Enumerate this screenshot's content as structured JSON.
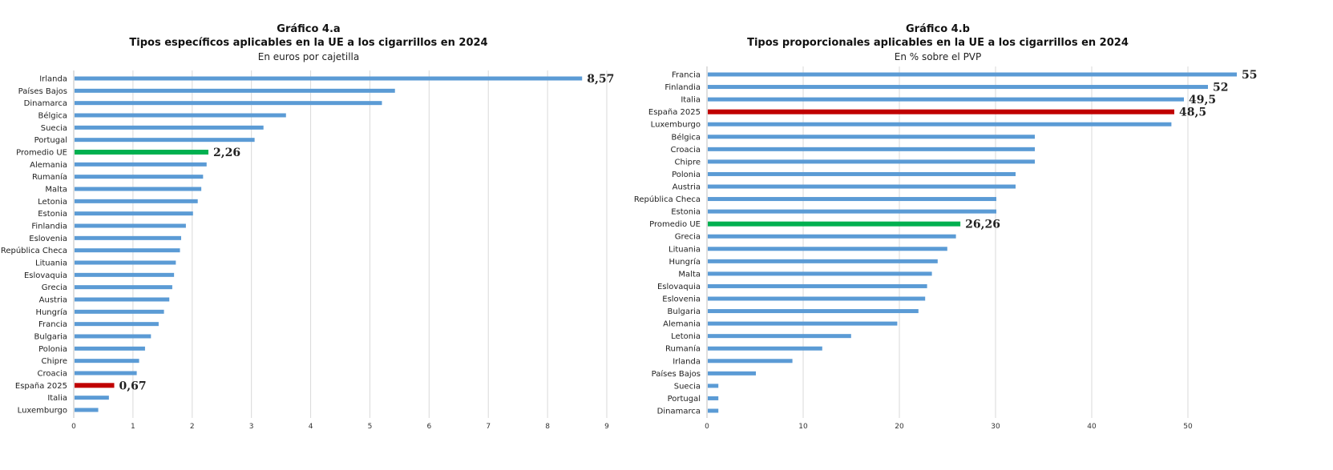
{
  "colors": {
    "bar": "#5b9bd5",
    "average": "#00b050",
    "spain": "#c00000",
    "grid": "#d9d9d9"
  },
  "chart_data": [
    {
      "type": "bar",
      "orientation": "horizontal",
      "title": "Gráfico 4.a",
      "subtitle": "Tipos específicos aplicables en la UE a los cigarrillos en 2024",
      "unit_label": "En euros por cajetilla",
      "xlim": [
        0,
        9
      ],
      "xticks": [
        "0",
        "1",
        "2",
        "3",
        "4",
        "5",
        "6",
        "7",
        "8",
        "9"
      ],
      "grid": true,
      "categories": [
        "Irlanda",
        "Países Bajos",
        "Dinamarca",
        "Bélgica",
        "Suecia",
        "Portugal",
        "Promedio UE",
        "Alemania",
        "Rumanía",
        "Malta",
        "Letonia",
        "Estonia",
        "Finlandia",
        "Eslovenia",
        "República Checa",
        "Lituania",
        "Eslovaquia",
        "Grecia",
        "Austria",
        "Hungría",
        "Francia",
        "Bulgaria",
        "Polonia",
        "Chipre",
        "Croacia",
        "España 2025",
        "Italia",
        "Luxemburgo"
      ],
      "values": [
        8.57,
        5.41,
        5.19,
        3.57,
        3.19,
        3.04,
        2.26,
        2.23,
        2.17,
        2.14,
        2.08,
        2.0,
        1.88,
        1.8,
        1.78,
        1.71,
        1.68,
        1.65,
        1.6,
        1.51,
        1.42,
        1.29,
        1.19,
        1.09,
        1.05,
        0.67,
        0.58,
        0.4
      ],
      "highlights": {
        "Promedio UE": "average",
        "España 2025": "spain"
      },
      "data_labels": {
        "Irlanda": "8,57",
        "Promedio UE": "2,26",
        "España 2025": "0,67"
      }
    },
    {
      "type": "bar",
      "orientation": "horizontal",
      "title": "Gráfico 4.b",
      "subtitle": "Tipos proporcionales aplicables en la UE a los cigarrillos en 2024",
      "unit_label": "En % sobre el PVP",
      "xlim": [
        0,
        55
      ],
      "xticks": [
        "0",
        "10",
        "20",
        "30",
        "40",
        "50"
      ],
      "grid": true,
      "categories": [
        "Francia",
        "Finlandia",
        "Italia",
        "España 2025",
        "Luxemburgo",
        "Bélgica",
        "Croacia",
        "Chipre",
        "Polonia",
        "Austria",
        "República Checa",
        "Estonia",
        "Promedio UE",
        "Grecia",
        "Lituania",
        "Hungría",
        "Malta",
        "Eslovaquia",
        "Eslovenia",
        "Bulgaria",
        "Alemania",
        "Letonia",
        "Rumanía",
        "Irlanda",
        "Países Bajos",
        "Suecia",
        "Portugal",
        "Dinamarca"
      ],
      "values": [
        55,
        52,
        49.5,
        48.5,
        48.2,
        34,
        34,
        34,
        32,
        32,
        30,
        30,
        26.26,
        25.8,
        24.9,
        23.9,
        23.3,
        22.8,
        22.6,
        21.9,
        19.7,
        14.9,
        11.9,
        8.8,
        5.0,
        1.1,
        1.1,
        1.1
      ],
      "highlights": {
        "Promedio UE": "average",
        "España 2025": "spain"
      },
      "data_labels": {
        "Francia": "55",
        "Finlandia": "52",
        "Italia": "49,5",
        "España 2025": "48,5",
        "Promedio UE": "26,26"
      }
    }
  ]
}
